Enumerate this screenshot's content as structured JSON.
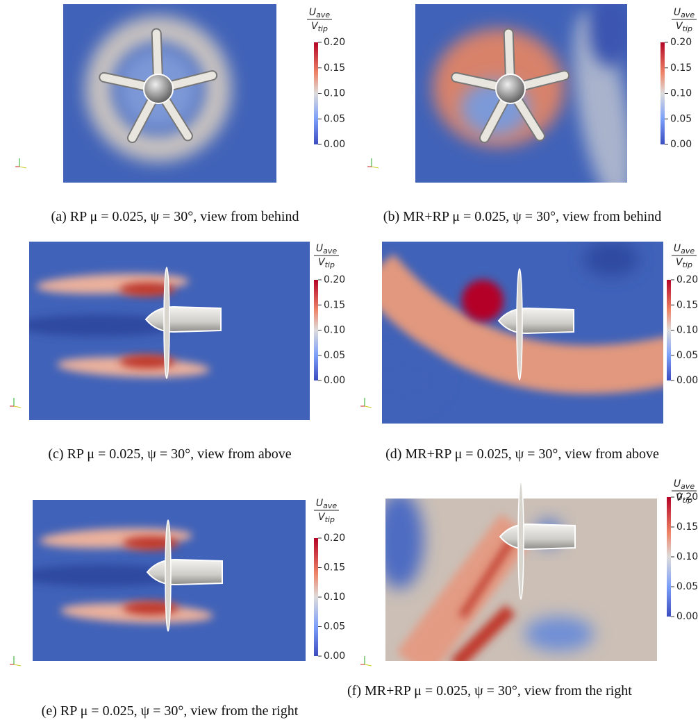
{
  "panels": [
    {
      "caption": "(a) RP μ = 0.025, ψ = 30°, view from behind",
      "colorbar": {
        "numerator": "U",
        "numerator_sub": "ave",
        "denominator": "V",
        "denominator_sub": "tip",
        "ticks": [
          "0.20",
          "0.15",
          "0.10",
          "0.05",
          "0.00"
        ]
      }
    },
    {
      "caption": "(b) MR+RP μ = 0.025, ψ = 30°, view from behind",
      "colorbar": {
        "numerator": "U",
        "numerator_sub": "ave",
        "denominator": "V",
        "denominator_sub": "tip",
        "ticks": [
          "0.20",
          "0.15",
          "0.10",
          "0.05",
          "0.00"
        ]
      }
    },
    {
      "caption": "(c) RP μ = 0.025, ψ = 30°, view from above",
      "colorbar": {
        "numerator": "U",
        "numerator_sub": "ave",
        "denominator": "V",
        "denominator_sub": "tip",
        "ticks": [
          "0.20",
          "0.15",
          "0.10",
          "0.05",
          "0.00"
        ]
      }
    },
    {
      "caption": "(d) MR+RP μ = 0.025, ψ = 30°, view from above",
      "colorbar": {
        "numerator": "U",
        "numerator_sub": "ave",
        "denominator": "V",
        "denominator_sub": "tip",
        "ticks": [
          "0.20",
          "0.15",
          "0.10",
          "0.05",
          "0.00"
        ]
      }
    },
    {
      "caption": "(e) RP μ = 0.025, ψ = 30°, view from the right",
      "colorbar": {
        "numerator": "U",
        "numerator_sub": "ave",
        "denominator": "V",
        "denominator_sub": "tip",
        "ticks": [
          "0.20",
          "0.15",
          "0.10",
          "0.05",
          "0.00"
        ]
      }
    },
    {
      "caption": "(f) MR+RP μ = 0.025, ψ = 30°, view from the right",
      "colorbar": {
        "numerator": "U",
        "numerator_sub": "ave",
        "denominator": "V",
        "denominator_sub": "tip",
        "ticks": [
          "0.20",
          "0.15",
          "0.10",
          "0.05",
          "0.00"
        ]
      }
    }
  ]
}
